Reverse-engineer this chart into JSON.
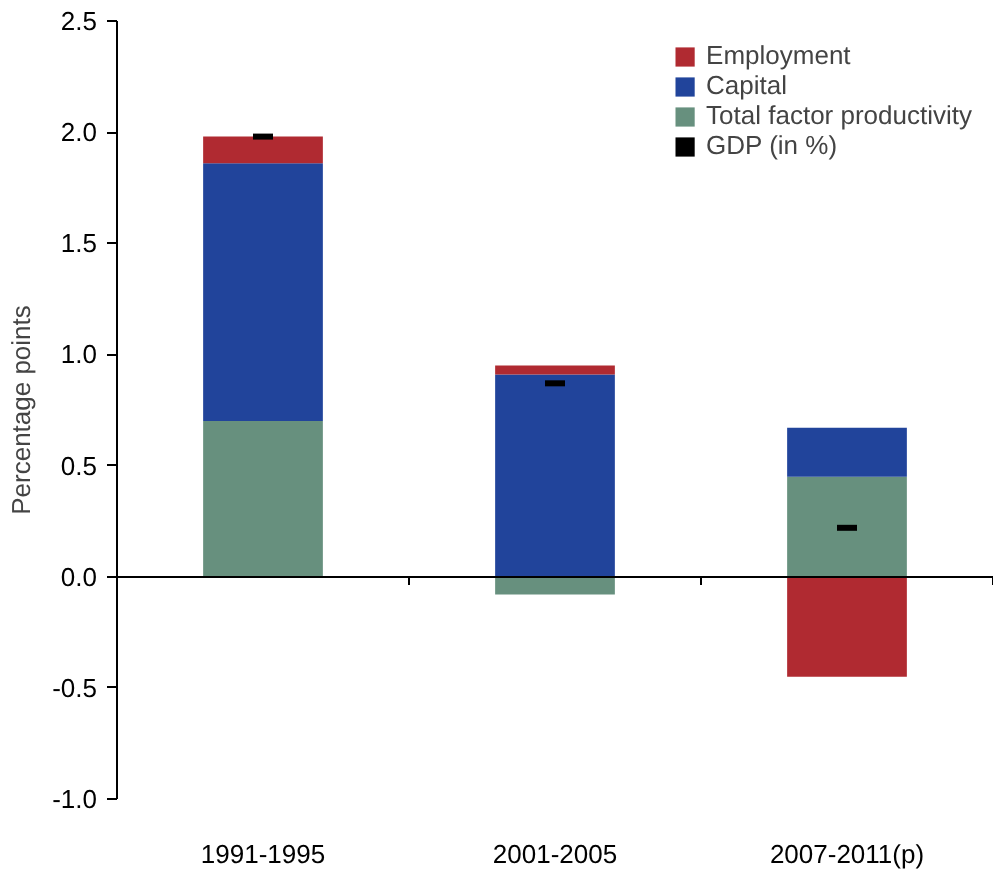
{
  "chart_data": {
    "type": "bar",
    "stacked": true,
    "ylabel": "Percentage points",
    "categories": [
      "1991-1995",
      "2001-2005",
      "2007-2011(p)"
    ],
    "series": [
      {
        "name": "Total factor productivity",
        "color": "#67907e",
        "values": [
          0.7,
          -0.08,
          0.45
        ]
      },
      {
        "name": "Capital",
        "color": "#21449b",
        "values": [
          1.16,
          0.91,
          0.22
        ]
      },
      {
        "name": "Employment",
        "color": "#b02a31",
        "values": [
          0.12,
          0.04,
          -0.45
        ]
      },
      {
        "name": "GDP (in %)",
        "type": "scatter",
        "color": "#000000",
        "x": [
          "1991-1995",
          "2001-2005",
          "2007-2011(p)"
        ],
        "values": [
          1.98,
          0.87,
          0.22
        ]
      }
    ],
    "ylim": [
      -1.0,
      2.5
    ],
    "yticks": [
      {
        "value": -1.0,
        "label": "-1.0"
      },
      {
        "value": -0.5,
        "label": "-0.5"
      },
      {
        "value": 0.0,
        "label": "0.0"
      },
      {
        "value": 0.5,
        "label": "0.5"
      },
      {
        "value": 1.0,
        "label": "1.0"
      },
      {
        "value": 1.5,
        "label": "1.5"
      },
      {
        "value": 2.0,
        "label": "2.0"
      },
      {
        "value": 2.5,
        "label": "2.5"
      }
    ],
    "legend": "top right"
  }
}
